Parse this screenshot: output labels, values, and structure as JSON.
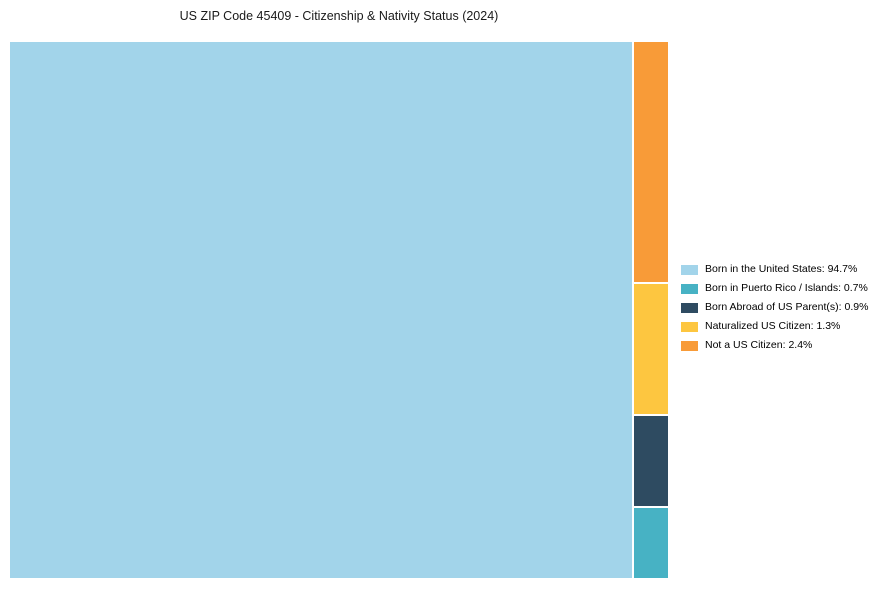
{
  "chart_data": {
    "type": "treemap",
    "title": "US ZIP Code 45409 - Citizenship & Nativity Status (2024)",
    "unit": "%",
    "legend_position": "right",
    "grid": false,
    "series": [
      {
        "label": "Born in the United States",
        "value": 94.7,
        "color": "#a2d4ea",
        "legend_label": "Born in the United States: 94.7%"
      },
      {
        "label": "Born in Puerto Rico / Islands",
        "value": 0.7,
        "color": "#47b2c4",
        "legend_label": "Born in Puerto Rico / Islands: 0.7%"
      },
      {
        "label": "Born Abroad of US Parent(s)",
        "value": 0.9,
        "color": "#2e4b61",
        "legend_label": "Born Abroad of US Parent(s): 0.9%"
      },
      {
        "label": "Naturalized US Citizen",
        "value": 1.3,
        "color": "#fdc640",
        "legend_label": "Naturalized US Citizen: 1.3%"
      },
      {
        "label": "Not a US Citizen",
        "value": 2.4,
        "color": "#f89b38",
        "legend_label": "Not a US Citizen: 2.4%"
      }
    ]
  }
}
